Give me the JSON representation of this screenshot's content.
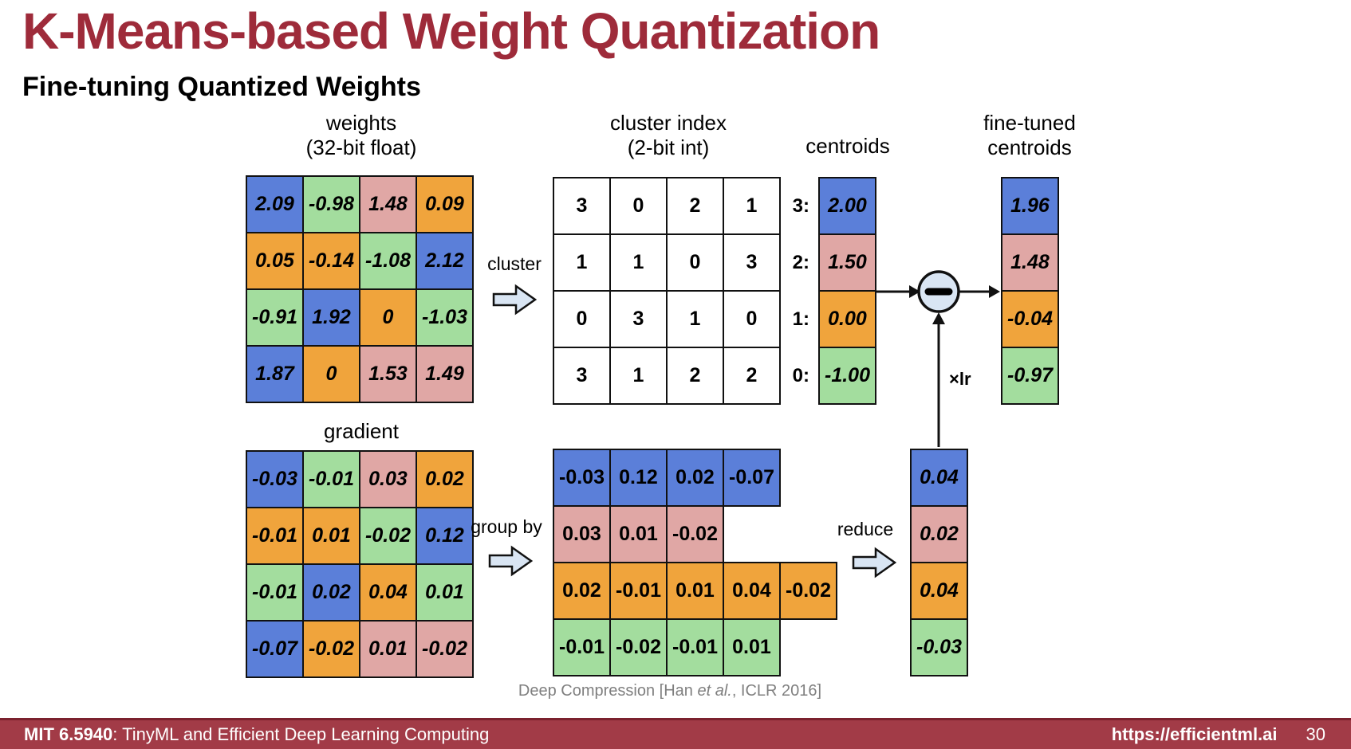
{
  "header": {
    "title": "K-Means-based Weight Quantization",
    "subtitle": "Fine-tuning Quantized Weights"
  },
  "colors": {
    "blue": "#5B7FD9",
    "green": "#A3DD9E",
    "pink": "#E0A7A5",
    "orange": "#F0A43C",
    "white": "#FFFFFF",
    "accent_red": "#9E2B3A",
    "footer_bg": "#A23B47",
    "arrow_fill": "#D9E5F3"
  },
  "weights": {
    "title1": "weights",
    "title2": "(32-bit float)",
    "rows": [
      [
        {
          "v": "2.09",
          "c": "blue"
        },
        {
          "v": "-0.98",
          "c": "green"
        },
        {
          "v": "1.48",
          "c": "pink"
        },
        {
          "v": "0.09",
          "c": "orange"
        }
      ],
      [
        {
          "v": "0.05",
          "c": "orange"
        },
        {
          "v": "-0.14",
          "c": "orange"
        },
        {
          "v": "-1.08",
          "c": "green"
        },
        {
          "v": "2.12",
          "c": "blue"
        }
      ],
      [
        {
          "v": "-0.91",
          "c": "green"
        },
        {
          "v": "1.92",
          "c": "blue"
        },
        {
          "v": "0",
          "c": "orange"
        },
        {
          "v": "-1.03",
          "c": "green"
        }
      ],
      [
        {
          "v": "1.87",
          "c": "blue"
        },
        {
          "v": "0",
          "c": "orange"
        },
        {
          "v": "1.53",
          "c": "pink"
        },
        {
          "v": "1.49",
          "c": "pink"
        }
      ]
    ]
  },
  "cluster_index": {
    "title1": "cluster index",
    "title2": "(2-bit int)",
    "rows": [
      [
        {
          "v": "3",
          "c": "white"
        },
        {
          "v": "0",
          "c": "white"
        },
        {
          "v": "2",
          "c": "white"
        },
        {
          "v": "1",
          "c": "white"
        }
      ],
      [
        {
          "v": "1",
          "c": "white"
        },
        {
          "v": "1",
          "c": "white"
        },
        {
          "v": "0",
          "c": "white"
        },
        {
          "v": "3",
          "c": "white"
        }
      ],
      [
        {
          "v": "0",
          "c": "white"
        },
        {
          "v": "3",
          "c": "white"
        },
        {
          "v": "1",
          "c": "white"
        },
        {
          "v": "0",
          "c": "white"
        }
      ],
      [
        {
          "v": "3",
          "c": "white"
        },
        {
          "v": "1",
          "c": "white"
        },
        {
          "v": "2",
          "c": "white"
        },
        {
          "v": "2",
          "c": "white"
        }
      ]
    ]
  },
  "centroids": {
    "title": "centroids",
    "index_labels": [
      "3:",
      "2:",
      "1:",
      "0:"
    ],
    "rows": [
      [
        {
          "v": "2.00",
          "c": "blue"
        }
      ],
      [
        {
          "v": "1.50",
          "c": "pink"
        }
      ],
      [
        {
          "v": "0.00",
          "c": "orange"
        }
      ],
      [
        {
          "v": "-1.00",
          "c": "green"
        }
      ]
    ]
  },
  "fine_tuned": {
    "title1": "fine-tuned",
    "title2": "centroids",
    "rows": [
      [
        {
          "v": "1.96",
          "c": "blue"
        }
      ],
      [
        {
          "v": "1.48",
          "c": "pink"
        }
      ],
      [
        {
          "v": "-0.04",
          "c": "orange"
        }
      ],
      [
        {
          "v": "-0.97",
          "c": "green"
        }
      ]
    ]
  },
  "gradient": {
    "title": "gradient",
    "rows": [
      [
        {
          "v": "-0.03",
          "c": "blue"
        },
        {
          "v": "-0.01",
          "c": "green"
        },
        {
          "v": "0.03",
          "c": "pink"
        },
        {
          "v": "0.02",
          "c": "orange"
        }
      ],
      [
        {
          "v": "-0.01",
          "c": "orange"
        },
        {
          "v": "0.01",
          "c": "orange"
        },
        {
          "v": "-0.02",
          "c": "green"
        },
        {
          "v": "0.12",
          "c": "blue"
        }
      ],
      [
        {
          "v": "-0.01",
          "c": "green"
        },
        {
          "v": "0.02",
          "c": "blue"
        },
        {
          "v": "0.04",
          "c": "orange"
        },
        {
          "v": "0.01",
          "c": "green"
        }
      ],
      [
        {
          "v": "-0.07",
          "c": "blue"
        },
        {
          "v": "-0.02",
          "c": "orange"
        },
        {
          "v": "0.01",
          "c": "pink"
        },
        {
          "v": "-0.02",
          "c": "pink"
        }
      ]
    ]
  },
  "grouped": {
    "rows": [
      [
        {
          "v": "-0.03",
          "c": "blue"
        },
        {
          "v": "0.12",
          "c": "blue"
        },
        {
          "v": "0.02",
          "c": "blue"
        },
        {
          "v": "-0.07",
          "c": "blue"
        }
      ],
      [
        {
          "v": "0.03",
          "c": "pink"
        },
        {
          "v": "0.01",
          "c": "pink"
        },
        {
          "v": "-0.02",
          "c": "pink"
        }
      ],
      [
        {
          "v": "0.02",
          "c": "orange"
        },
        {
          "v": "-0.01",
          "c": "orange"
        },
        {
          "v": "0.01",
          "c": "orange"
        },
        {
          "v": "0.04",
          "c": "orange"
        },
        {
          "v": "-0.02",
          "c": "orange"
        }
      ],
      [
        {
          "v": "-0.01",
          "c": "green"
        },
        {
          "v": "-0.02",
          "c": "green"
        },
        {
          "v": "-0.01",
          "c": "green"
        },
        {
          "v": "0.01",
          "c": "green"
        }
      ]
    ]
  },
  "reduced": {
    "rows": [
      [
        {
          "v": "0.04",
          "c": "blue"
        }
      ],
      [
        {
          "v": "0.02",
          "c": "pink"
        }
      ],
      [
        {
          "v": "0.04",
          "c": "orange"
        }
      ],
      [
        {
          "v": "-0.03",
          "c": "green"
        }
      ]
    ]
  },
  "flow": {
    "cluster": "cluster",
    "group_by": "group by",
    "reduce": "reduce",
    "times_lr": "×lr"
  },
  "citation": {
    "prefix": "Deep Compression [Han ",
    "italic": "et al.",
    "suffix": ", ICLR 2016]"
  },
  "footer": {
    "course_bold": "MIT 6.5940",
    "course_rest": ": TinyML and Efficient Deep Learning Computing",
    "url": "https://efficientml.ai",
    "page": "30"
  }
}
